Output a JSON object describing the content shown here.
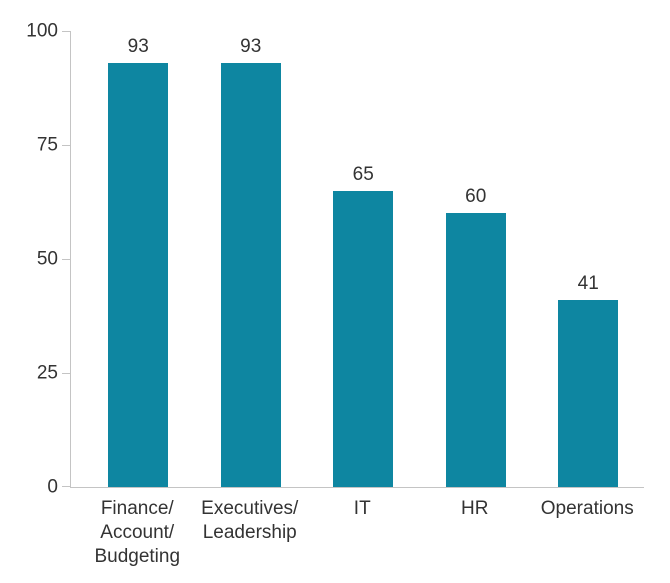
{
  "chart_data": {
    "type": "bar",
    "categories": [
      "Finance/Account/Budgeting",
      "Executives/Leadership",
      "IT",
      "HR",
      "Operations"
    ],
    "category_label_lines": [
      [
        "Finance/",
        "Account/",
        "Budgeting"
      ],
      [
        "Executives/",
        "Leadership"
      ],
      [
        "IT"
      ],
      [
        "HR"
      ],
      [
        "Operations"
      ]
    ],
    "values": [
      93,
      93,
      65,
      60,
      41
    ],
    "value_labels": [
      "93",
      "93",
      "65",
      "60",
      "41"
    ],
    "title": "",
    "xlabel": "",
    "ylabel": "",
    "ylim": [
      0,
      100
    ],
    "yticks": [
      0,
      25,
      50,
      75,
      100
    ],
    "grid": false,
    "legend": false,
    "bar_color": "#0e86a1",
    "axis_color": "#c4c4c4",
    "text_color": "#333333"
  }
}
